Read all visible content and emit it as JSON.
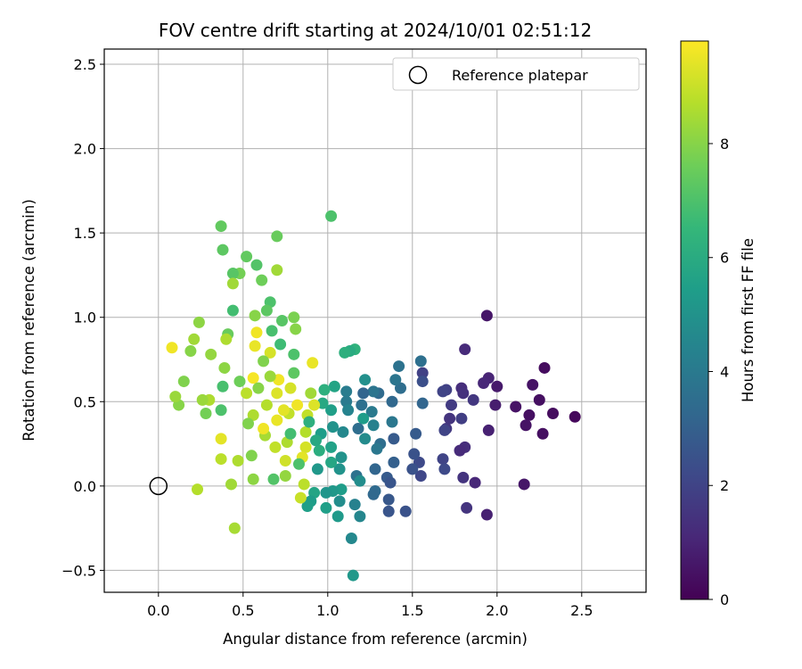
{
  "chart_data": {
    "type": "scatter",
    "title": "FOV centre drift starting at 2024/10/01 02:51:12",
    "xlabel": "Angular distance from reference (arcmin)",
    "ylabel": "Rotation from reference (arcmin)",
    "xlim": [
      -0.32,
      2.88
    ],
    "ylim": [
      -0.63,
      2.59
    ],
    "xticks": [
      0.0,
      0.5,
      1.0,
      1.5,
      2.0,
      2.5
    ],
    "xtick_labels": [
      "0.0",
      "0.5",
      "1.0",
      "1.5",
      "2.0",
      "2.5"
    ],
    "yticks": [
      -0.5,
      0.0,
      0.5,
      1.0,
      1.5,
      2.0,
      2.5
    ],
    "ytick_labels": [
      "−0.5",
      "0.0",
      "0.5",
      "1.0",
      "1.5",
      "2.0",
      "2.5"
    ],
    "grid": true,
    "legend": {
      "position": "top-right",
      "entries": [
        "Reference platepar"
      ]
    },
    "reference_point": {
      "name": "Reference platepar",
      "x": 0.0,
      "y": 0.0
    },
    "colorbar": {
      "label": "Hours from first FF file",
      "colormap": "viridis",
      "range": [
        0,
        9.8
      ],
      "ticks": [
        0,
        2,
        4,
        6,
        8
      ],
      "tick_labels": [
        "0",
        "2",
        "4",
        "6",
        "8"
      ]
    },
    "colormap_stops": [
      "#440154",
      "#482878",
      "#3e4989",
      "#31688e",
      "#26828e",
      "#1f9e89",
      "#35b779",
      "#6ece58",
      "#b5de2b",
      "#fde725"
    ],
    "points": [
      [
        1.94,
        1.01,
        0.6
      ],
      [
        2.28,
        0.7,
        0.3
      ],
      [
        2.21,
        0.6,
        0.5
      ],
      [
        2.46,
        0.41,
        0.2
      ],
      [
        2.33,
        0.43,
        0.3
      ],
      [
        2.25,
        0.51,
        0.4
      ],
      [
        2.19,
        0.42,
        0.4
      ],
      [
        2.17,
        0.36,
        0.5
      ],
      [
        2.27,
        0.31,
        0.4
      ],
      [
        2.11,
        0.47,
        0.5
      ],
      [
        2.16,
        0.01,
        0.6
      ],
      [
        2.0,
        0.59,
        0.7
      ],
      [
        1.99,
        0.48,
        0.8
      ],
      [
        1.95,
        0.64,
        1.0
      ],
      [
        1.92,
        0.61,
        1.1
      ],
      [
        1.95,
        0.33,
        0.9
      ],
      [
        1.94,
        -0.17,
        0.9
      ],
      [
        1.87,
        0.02,
        1.1
      ],
      [
        1.81,
        0.81,
        1.2
      ],
      [
        1.79,
        0.58,
        1.3
      ],
      [
        1.8,
        0.55,
        1.4
      ],
      [
        1.81,
        0.23,
        1.3
      ],
      [
        1.78,
        0.21,
        1.2
      ],
      [
        1.8,
        0.05,
        1.5
      ],
      [
        1.82,
        -0.13,
        1.5
      ],
      [
        1.86,
        0.51,
        1.6
      ],
      [
        1.73,
        0.48,
        1.7
      ],
      [
        1.72,
        0.4,
        1.5
      ],
      [
        1.7,
        0.57,
        1.9
      ],
      [
        1.68,
        0.56,
        2.0
      ],
      [
        1.7,
        0.34,
        1.6
      ],
      [
        1.69,
        0.33,
        2.0
      ],
      [
        1.68,
        0.16,
        2.0
      ],
      [
        1.69,
        0.1,
        2.2
      ],
      [
        1.79,
        0.4,
        1.8
      ],
      [
        1.55,
        0.74,
        3.6
      ],
      [
        1.56,
        0.67,
        1.9
      ],
      [
        1.56,
        0.62,
        2.4
      ],
      [
        1.56,
        0.49,
        3.2
      ],
      [
        1.54,
        0.14,
        2.2
      ],
      [
        1.55,
        0.06,
        2.1
      ],
      [
        1.51,
        0.19,
        2.5
      ],
      [
        1.52,
        0.31,
        2.8
      ],
      [
        1.5,
        0.1,
        2.5
      ],
      [
        1.46,
        -0.15,
        2.5
      ],
      [
        1.42,
        0.71,
        3.7
      ],
      [
        1.43,
        0.58,
        3.5
      ],
      [
        1.4,
        0.63,
        3.8
      ],
      [
        1.38,
        0.5,
        3.3
      ],
      [
        1.38,
        0.38,
        3.9
      ],
      [
        1.39,
        0.28,
        2.8
      ],
      [
        1.39,
        0.14,
        3.0
      ],
      [
        1.35,
        0.05,
        2.8
      ],
      [
        1.37,
        0.02,
        2.6
      ],
      [
        1.36,
        -0.08,
        2.7
      ],
      [
        1.36,
        -0.15,
        2.6
      ],
      [
        1.3,
        0.55,
        3.4
      ],
      [
        1.27,
        0.56,
        3.8
      ],
      [
        1.26,
        0.44,
        4.0
      ],
      [
        1.27,
        0.36,
        4.3
      ],
      [
        1.31,
        0.25,
        3.5
      ],
      [
        1.29,
        0.22,
        3.9
      ],
      [
        1.28,
        0.1,
        3.2
      ],
      [
        1.28,
        -0.03,
        3.4
      ],
      [
        1.27,
        -0.05,
        3.3
      ],
      [
        1.21,
        0.55,
        3.2
      ],
      [
        1.2,
        0.48,
        3.6
      ],
      [
        1.21,
        0.4,
        5.4
      ],
      [
        1.22,
        0.63,
        4.9
      ],
      [
        1.22,
        0.28,
        4.7
      ],
      [
        1.18,
        0.34,
        3.5
      ],
      [
        1.17,
        0.06,
        3.7
      ],
      [
        1.19,
        0.03,
        4.8
      ],
      [
        1.19,
        -0.18,
        4.5
      ],
      [
        1.16,
        -0.11,
        4.3
      ],
      [
        1.14,
        -0.31,
        4.6
      ],
      [
        1.15,
        -0.53,
        5.2
      ],
      [
        1.16,
        0.81,
        6.3
      ],
      [
        1.13,
        0.8,
        6.0
      ],
      [
        1.11,
        0.56,
        4.1
      ],
      [
        1.11,
        0.5,
        4.0
      ],
      [
        1.12,
        0.45,
        4.4
      ],
      [
        1.09,
        0.32,
        4.6
      ],
      [
        1.08,
        0.17,
        5.0
      ],
      [
        1.07,
        0.1,
        5.0
      ],
      [
        1.08,
        -0.02,
        5.4
      ],
      [
        1.07,
        -0.09,
        4.8
      ],
      [
        1.06,
        -0.18,
        5.3
      ],
      [
        1.1,
        0.79,
        6.2
      ],
      [
        1.04,
        0.59,
        5.7
      ],
      [
        1.02,
        0.45,
        5.5
      ],
      [
        1.03,
        0.35,
        5.0
      ],
      [
        1.02,
        0.23,
        5.6
      ],
      [
        1.02,
        0.14,
        5.8
      ],
      [
        1.03,
        -0.03,
        5.2
      ],
      [
        0.99,
        -0.04,
        5.1
      ],
      [
        0.99,
        -0.13,
        5.5
      ],
      [
        1.02,
        1.6,
        7.0
      ],
      [
        0.98,
        0.57,
        6.2
      ],
      [
        0.97,
        0.49,
        5.9
      ],
      [
        0.96,
        0.31,
        5.4
      ],
      [
        0.95,
        0.21,
        6.1
      ],
      [
        0.94,
        0.1,
        5.2
      ],
      [
        0.92,
        -0.04,
        5.7
      ],
      [
        0.9,
        -0.09,
        5.4
      ],
      [
        0.88,
        -0.12,
        5.5
      ],
      [
        0.92,
        0.48,
        9.3
      ],
      [
        0.91,
        0.73,
        9.5
      ],
      [
        0.9,
        0.55,
        8.4
      ],
      [
        0.88,
        0.42,
        8.9
      ],
      [
        0.87,
        0.32,
        8.7
      ],
      [
        0.87,
        0.23,
        9.2
      ],
      [
        0.85,
        0.17,
        9.4
      ],
      [
        0.86,
        0.01,
        8.8
      ],
      [
        0.84,
        -0.07,
        9.0
      ],
      [
        0.8,
        1.0,
        7.8
      ],
      [
        0.81,
        0.93,
        8.0
      ],
      [
        0.8,
        0.78,
        7.0
      ],
      [
        0.8,
        0.67,
        7.3
      ],
      [
        0.78,
        0.58,
        9.2
      ],
      [
        0.77,
        0.43,
        8.9
      ],
      [
        0.76,
        0.26,
        8.6
      ],
      [
        0.75,
        0.15,
        9.1
      ],
      [
        0.75,
        0.06,
        8.2
      ],
      [
        0.73,
        0.98,
        7.2
      ],
      [
        0.72,
        0.84,
        6.7
      ],
      [
        0.71,
        0.63,
        9.6
      ],
      [
        0.7,
        0.55,
        9.3
      ],
      [
        0.7,
        0.39,
        9.5
      ],
      [
        0.69,
        0.23,
        8.9
      ],
      [
        0.68,
        0.04,
        7.1
      ],
      [
        0.67,
        0.92,
        6.9
      ],
      [
        0.66,
        0.79,
        9.2
      ],
      [
        0.66,
        0.65,
        8.3
      ],
      [
        0.64,
        0.48,
        8.7
      ],
      [
        0.63,
        0.3,
        8.5
      ],
      [
        0.7,
        1.48,
        7.5
      ],
      [
        0.7,
        1.28,
        8.4
      ],
      [
        0.66,
        1.09,
        7.0
      ],
      [
        0.64,
        1.04,
        7.3
      ],
      [
        0.61,
        1.22,
        7.6
      ],
      [
        0.58,
        1.31,
        7.1
      ],
      [
        0.57,
        1.01,
        8.0
      ],
      [
        0.58,
        0.91,
        9.6
      ],
      [
        0.57,
        0.83,
        9.5
      ],
      [
        0.56,
        0.64,
        9.7
      ],
      [
        0.56,
        0.42,
        8.6
      ],
      [
        0.55,
        0.18,
        7.9
      ],
      [
        0.56,
        0.04,
        8.1
      ],
      [
        0.52,
        1.36,
        7.4
      ],
      [
        0.48,
        1.26,
        7.7
      ],
      [
        0.44,
        1.26,
        7.2
      ],
      [
        0.44,
        1.2,
        8.4
      ],
      [
        0.44,
        1.04,
        6.8
      ],
      [
        0.41,
        0.9,
        7.5
      ],
      [
        0.4,
        0.87,
        8.6
      ],
      [
        0.39,
        0.7,
        8.1
      ],
      [
        0.38,
        0.59,
        6.9
      ],
      [
        0.37,
        0.45,
        7.0
      ],
      [
        0.37,
        0.28,
        9.4
      ],
      [
        0.37,
        0.16,
        8.8
      ],
      [
        0.38,
        1.4,
        7.3
      ],
      [
        0.37,
        1.54,
        7.4
      ],
      [
        0.31,
        0.78,
        8.2
      ],
      [
        0.3,
        0.51,
        8.6
      ],
      [
        0.28,
        0.43,
        7.7
      ],
      [
        0.26,
        0.51,
        8.3
      ],
      [
        0.24,
        0.97,
        8.1
      ],
      [
        0.21,
        0.87,
        8.4
      ],
      [
        0.19,
        0.8,
        8.0
      ],
      [
        0.15,
        0.62,
        7.9
      ],
      [
        0.12,
        0.48,
        8.0
      ],
      [
        0.1,
        0.53,
        8.3
      ],
      [
        0.08,
        0.82,
        9.6
      ],
      [
        0.23,
        -0.02,
        8.7
      ],
      [
        0.45,
        -0.25,
        8.5
      ],
      [
        0.43,
        0.01,
        8.4
      ],
      [
        0.47,
        0.15,
        8.6
      ],
      [
        0.52,
        0.55,
        8.8
      ],
      [
        0.48,
        0.62,
        7.6
      ],
      [
        0.53,
        0.37,
        7.9
      ],
      [
        0.59,
        0.58,
        8.0
      ],
      [
        0.62,
        0.74,
        7.9
      ],
      [
        0.62,
        0.34,
        9.6
      ],
      [
        0.74,
        0.45,
        9.4
      ],
      [
        0.78,
        0.31,
        6.8
      ],
      [
        0.82,
        0.48,
        9.6
      ],
      [
        0.83,
        0.13,
        7.0
      ],
      [
        0.89,
        0.38,
        6.2
      ],
      [
        0.93,
        0.27,
        5.9
      ]
    ]
  }
}
